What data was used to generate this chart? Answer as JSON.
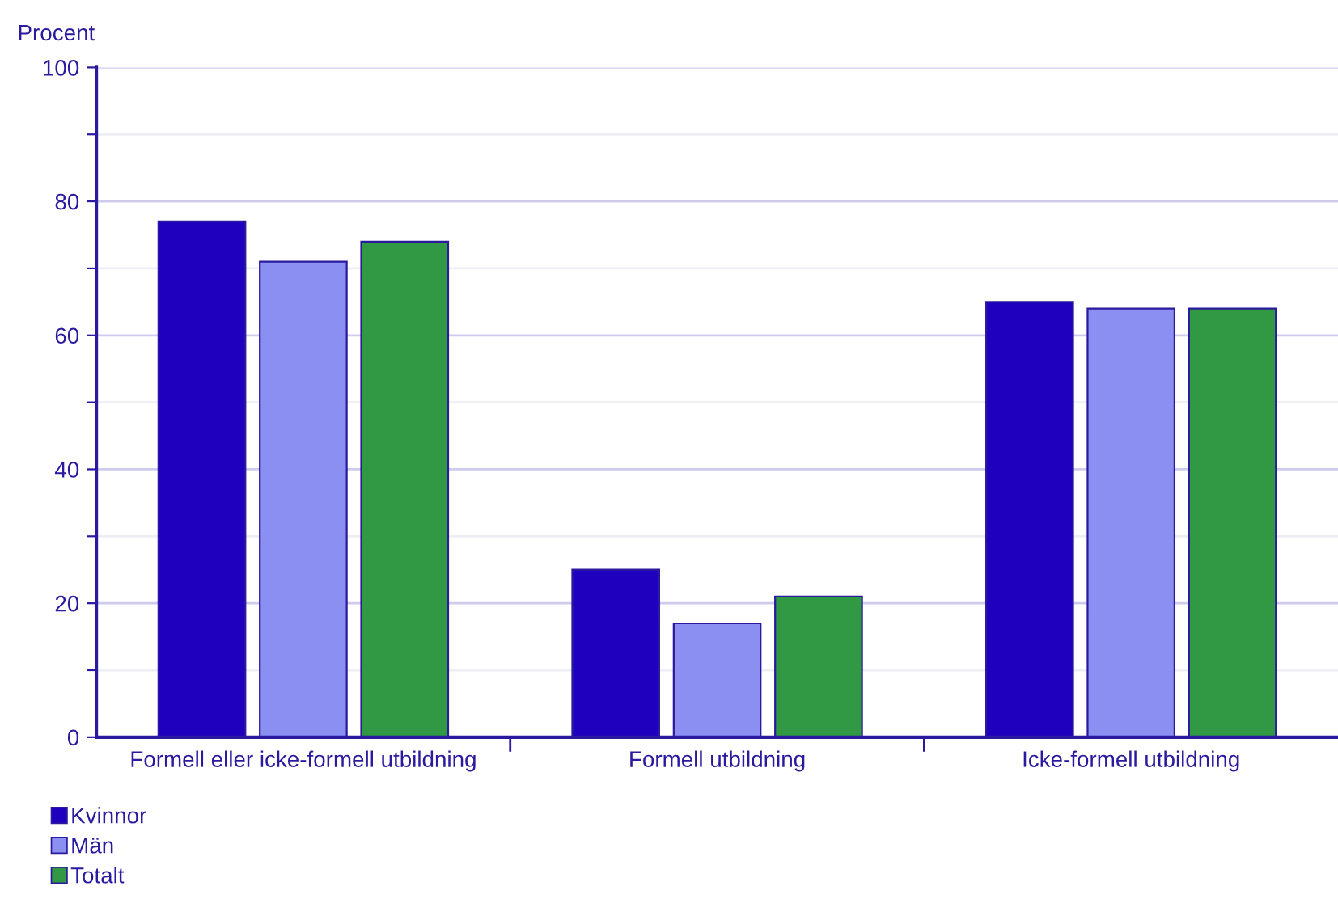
{
  "chart_data": {
    "type": "bar",
    "ylabel": "Procent",
    "categories": [
      "Formell eller icke-formell utbildning",
      "Formell utbildning",
      "Icke-formell utbildning"
    ],
    "series": [
      {
        "name": "Kvinnor",
        "color": "#1e00be",
        "values": [
          77,
          25,
          65
        ]
      },
      {
        "name": "Män",
        "color": "#8c8ff2",
        "values": [
          71,
          17,
          64
        ]
      },
      {
        "name": "Totalt",
        "color": "#319844",
        "values": [
          74,
          21,
          64
        ]
      }
    ],
    "ylim": [
      0,
      100
    ],
    "yticks": [
      0,
      {
        "value": 10,
        "label": null
      },
      20,
      {
        "value": 30,
        "label": null
      },
      40,
      {
        "value": 50,
        "label": null
      },
      60,
      {
        "value": 70,
        "label": null
      },
      80,
      {
        "value": 90,
        "label": null
      },
      100
    ],
    "grid": "y",
    "legend": "bottom left"
  }
}
